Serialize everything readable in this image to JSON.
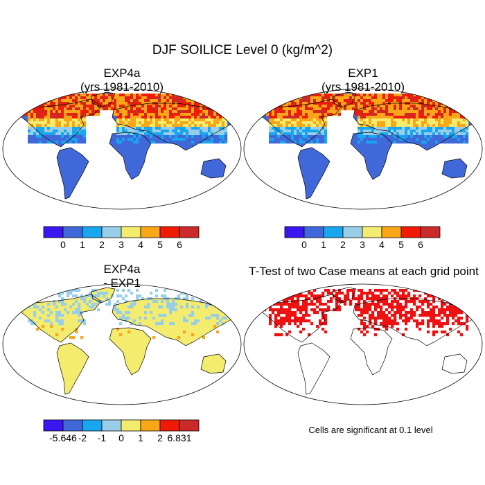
{
  "main_title": "DJF SOILICE Level 0 (kg/m^2)",
  "panels": {
    "top_left": {
      "title": "EXP4a",
      "subtitle": "(yrs 1981-2010)"
    },
    "top_right": {
      "title": "EXP1",
      "subtitle": "(yrs 1981-2010)"
    },
    "bottom_left": {
      "title": "EXP4a",
      "subtitle": "- EXP1"
    },
    "bottom_right": {
      "title": "T-Test of two Case means at each grid point"
    }
  },
  "significance_note": "Cells are significant at 0.1 level",
  "chart_data": [
    {
      "type": "heatmap",
      "projection": "robinson",
      "variable": "SOILICE",
      "season": "DJF",
      "level": "Level 0",
      "units": "kg/m^2",
      "title": "EXP4a",
      "subtitle": "(yrs 1981-2010)",
      "colorbar": {
        "colors": [
          "#3a16f0",
          "#4168d9",
          "#18a6ef",
          "#98cee8",
          "#f4ec6e",
          "#f9a718",
          "#ef1b06",
          "#cb2a2a"
        ],
        "tick_labels": [
          "0",
          "1",
          "2",
          "3",
          "4",
          "5",
          "6"
        ]
      }
    },
    {
      "type": "heatmap",
      "projection": "robinson",
      "variable": "SOILICE",
      "season": "DJF",
      "level": "Level 0",
      "units": "kg/m^2",
      "title": "EXP1",
      "subtitle": "(yrs 1981-2010)",
      "colorbar": {
        "colors": [
          "#3a16f0",
          "#4168d9",
          "#18a6ef",
          "#98cee8",
          "#f4ec6e",
          "#f9a718",
          "#ef1b06",
          "#cb2a2a"
        ],
        "tick_labels": [
          "0",
          "1",
          "2",
          "3",
          "4",
          "5",
          "6"
        ]
      }
    },
    {
      "type": "heatmap",
      "projection": "robinson",
      "title": "EXP4a",
      "subtitle": "- EXP1",
      "colorbar": {
        "colors": [
          "#3a16f0",
          "#4168d9",
          "#18a6ef",
          "#98cee8",
          "#f4ec6e",
          "#f9a718",
          "#ef1b06",
          "#cb2a2a"
        ],
        "tick_labels": [
          "-5.646",
          "-2",
          "-1",
          "0",
          "1",
          "2",
          "6.831"
        ],
        "min": -5.646,
        "max": 6.831
      }
    },
    {
      "type": "heatmap",
      "projection": "robinson",
      "title": "T-Test of two Case means at each grid point",
      "significance_level": 0.1,
      "significant_color": "#ee1111"
    }
  ]
}
